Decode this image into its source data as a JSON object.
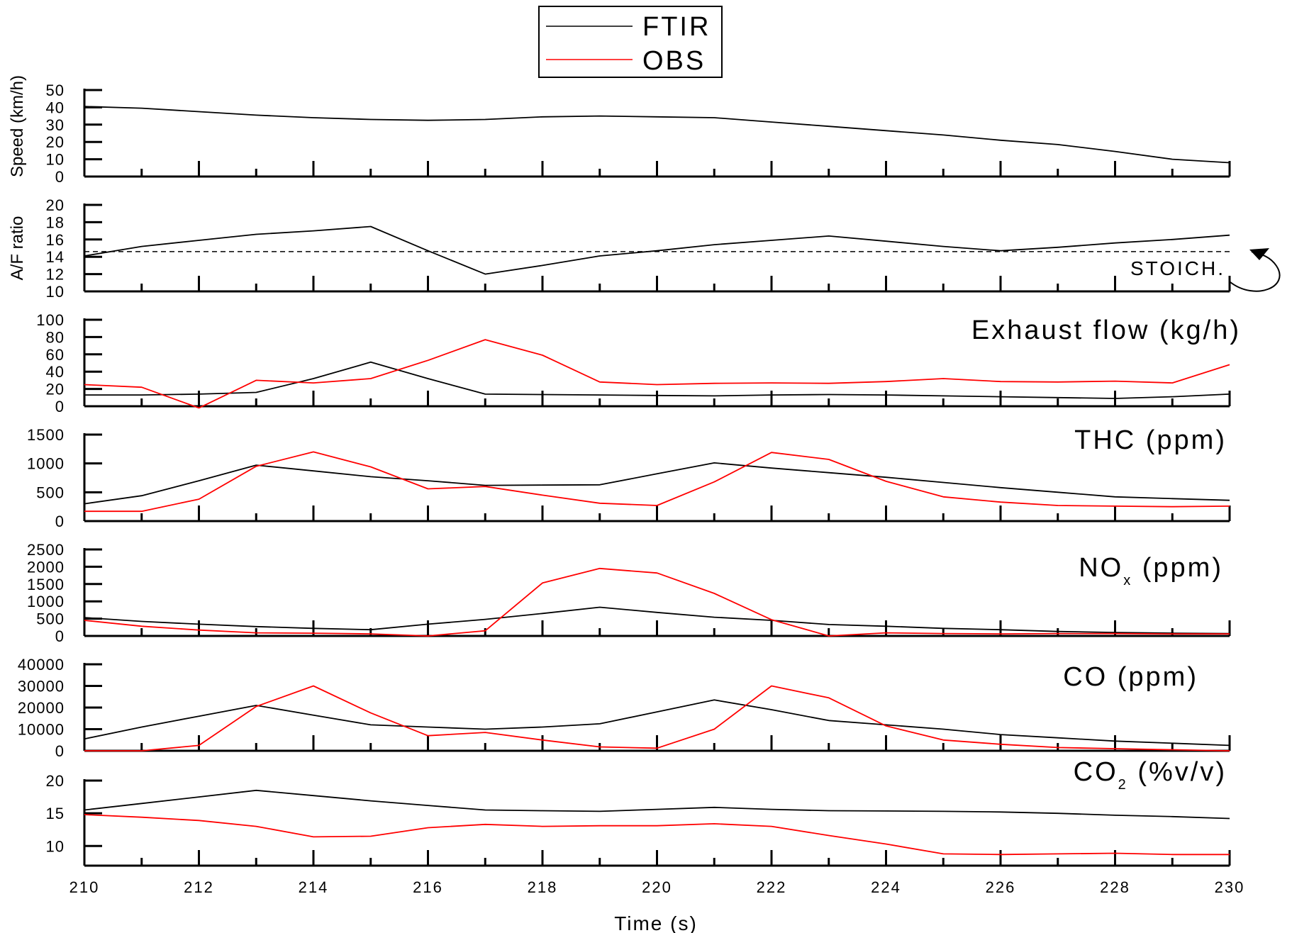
{
  "legend": [
    {
      "label": "FTIR",
      "color": "#000000"
    },
    {
      "label": "OBS",
      "color": "#ff0000"
    }
  ],
  "stoich_label": "STOICH.",
  "chart_data": {
    "type": "line",
    "x": [
      210,
      211,
      212,
      213,
      214,
      215,
      216,
      217,
      218,
      219,
      220,
      221,
      222,
      223,
      224,
      225,
      226,
      227,
      228,
      229,
      230
    ],
    "xlim": [
      210,
      230
    ],
    "xticks": [
      210,
      212,
      214,
      216,
      218,
      220,
      222,
      224,
      226,
      228,
      230
    ],
    "xtick_labels": [
      "210",
      "212",
      "214",
      "216",
      "218",
      "220",
      "222",
      "224",
      "226",
      "228",
      "230"
    ],
    "xlabel": "Time (s)",
    "panels": [
      {
        "id": "speed",
        "ylabel": "Speed (km/h)",
        "title": "",
        "ylim": [
          0,
          50
        ],
        "yticks": [
          0,
          10,
          20,
          30,
          40,
          50
        ],
        "ytick_labels": [
          "0",
          "10",
          "20",
          "30",
          "40",
          "50"
        ],
        "series": [
          {
            "name": "FTIR",
            "values": [
              40.5,
              39.5,
              37.5,
              35.5,
              34,
              33,
              32.5,
              33,
              34.5,
              35,
              34.5,
              34,
              31.5,
              29,
              26.5,
              24,
              21,
              18.5,
              14.5,
              10,
              8
            ]
          }
        ]
      },
      {
        "id": "af",
        "ylabel": "A/F ratio",
        "title": "",
        "ylim": [
          10,
          20
        ],
        "yticks": [
          10,
          12,
          14,
          16,
          18,
          20
        ],
        "ytick_labels": [
          "10",
          "12",
          "14",
          "16",
          "18",
          "20"
        ],
        "reference_line": 14.6,
        "series": [
          {
            "name": "FTIR",
            "values": [
              14.1,
              15.2,
              15.9,
              16.6,
              17.0,
              17.5,
              14.7,
              12.0,
              13.0,
              14.1,
              14.7,
              15.4,
              15.9,
              16.4,
              15.8,
              15.2,
              14.7,
              15.1,
              15.6,
              16.0,
              16.5
            ]
          }
        ]
      },
      {
        "id": "exhaust",
        "ylabel": "",
        "title": "Exhaust flow (kg/h)",
        "title_sub": "",
        "title_suffix": "",
        "ylim": [
          0,
          100
        ],
        "yticks": [
          0,
          20,
          40,
          60,
          80,
          100
        ],
        "ytick_labels": [
          "0",
          "20",
          "40",
          "60",
          "80",
          "100"
        ],
        "series": [
          {
            "name": "FTIR",
            "values": [
              13,
              13,
              14,
              16,
              32,
              51,
              32,
              14,
              13.5,
              13,
              12.5,
              12,
              13,
              13.5,
              13,
              12,
              11,
              10,
              9,
              11,
              14
            ]
          },
          {
            "name": "OBS",
            "values": [
              25,
              22,
              -2,
              30,
              27,
              32,
              53,
              77,
              59,
              28,
              25,
              26.5,
              27,
              26.5,
              28.5,
              32,
              28.5,
              28,
              29,
              27,
              48
            ]
          }
        ]
      },
      {
        "id": "thc",
        "ylabel": "",
        "title": "THC (ppm)",
        "title_sub": "",
        "title_suffix": "",
        "ylim": [
          0,
          1500
        ],
        "yticks": [
          0,
          500,
          1000,
          1500
        ],
        "ytick_labels": [
          "0",
          "500",
          "1000",
          "1500"
        ],
        "series": [
          {
            "name": "FTIR",
            "values": [
              300,
              440,
              700,
              970,
              870,
              770,
              700,
              620,
              625,
              630,
              820,
              1010,
              920,
              840,
              760,
              670,
              580,
              500,
              420,
              390,
              360
            ]
          },
          {
            "name": "OBS",
            "values": [
              170,
              170,
              380,
              950,
              1200,
              940,
              560,
              600,
              450,
              310,
              270,
              680,
              1190,
              1070,
              690,
              420,
              330,
              270,
              260,
              250,
              260
            ]
          }
        ]
      },
      {
        "id": "nox",
        "ylabel": "",
        "title": "NO",
        "title_sub": "x",
        "title_suffix": " (ppm)",
        "ylim": [
          0,
          2500
        ],
        "yticks": [
          0,
          500,
          1000,
          1500,
          2000,
          2500
        ],
        "ytick_labels": [
          "0",
          "500",
          "1000",
          "1500",
          "2000",
          "2500"
        ],
        "series": [
          {
            "name": "FTIR",
            "values": [
              530,
              420,
              340,
              270,
              220,
              180,
              340,
              480,
              650,
              830,
              680,
              540,
              450,
              330,
              280,
              220,
              180,
              130,
              100,
              80,
              70
            ]
          },
          {
            "name": "OBS",
            "values": [
              450,
              280,
              170,
              90,
              80,
              60,
              0,
              150,
              1530,
              1950,
              1820,
              1230,
              470,
              0,
              90,
              70,
              60,
              70,
              70,
              60,
              60
            ]
          }
        ]
      },
      {
        "id": "co",
        "ylabel": "",
        "title": "CO (ppm)",
        "title_sub": "",
        "title_suffix": "",
        "ylim": [
          0,
          40000
        ],
        "yticks": [
          0,
          10000,
          20000,
          30000,
          40000
        ],
        "ytick_labels": [
          "0",
          "10000",
          "20000",
          "30000",
          "40000"
        ],
        "series": [
          {
            "name": "FTIR",
            "values": [
              5500,
              11000,
              16000,
              21000,
              16500,
              12000,
              11000,
              10000,
              11000,
              12500,
              18000,
              23500,
              19000,
              14000,
              12000,
              10000,
              7500,
              6000,
              4500,
              3500,
              2500
            ]
          },
          {
            "name": "OBS",
            "values": [
              0,
              0,
              2500,
              20500,
              30000,
              17500,
              7000,
              8500,
              5000,
              1800,
              1200,
              10000,
              30000,
              24500,
              11500,
              5000,
              3000,
              1500,
              1000,
              500,
              0
            ]
          }
        ]
      },
      {
        "id": "co2",
        "ylabel": "",
        "title": "CO",
        "title_sub": "2",
        "title_suffix": " (%v/v)",
        "ylim": [
          7,
          20
        ],
        "yticks": [
          10,
          15,
          20
        ],
        "ytick_labels": [
          "10",
          "15",
          "20"
        ],
        "series": [
          {
            "name": "FTIR",
            "values": [
              15.5,
              16.5,
              17.5,
              18.5,
              17.7,
              16.9,
              16.2,
              15.5,
              15.4,
              15.3,
              15.6,
              15.9,
              15.6,
              15.4,
              15.35,
              15.3,
              15.2,
              15.0,
              14.7,
              14.5,
              14.2
            ]
          },
          {
            "name": "OBS",
            "values": [
              14.8,
              14.4,
              13.9,
              13.0,
              11.4,
              11.5,
              12.8,
              13.3,
              13.0,
              13.1,
              13.1,
              13.4,
              13.0,
              11.6,
              10.3,
              8.8,
              8.7,
              8.8,
              8.9,
              8.7,
              8.7
            ]
          }
        ]
      }
    ]
  }
}
